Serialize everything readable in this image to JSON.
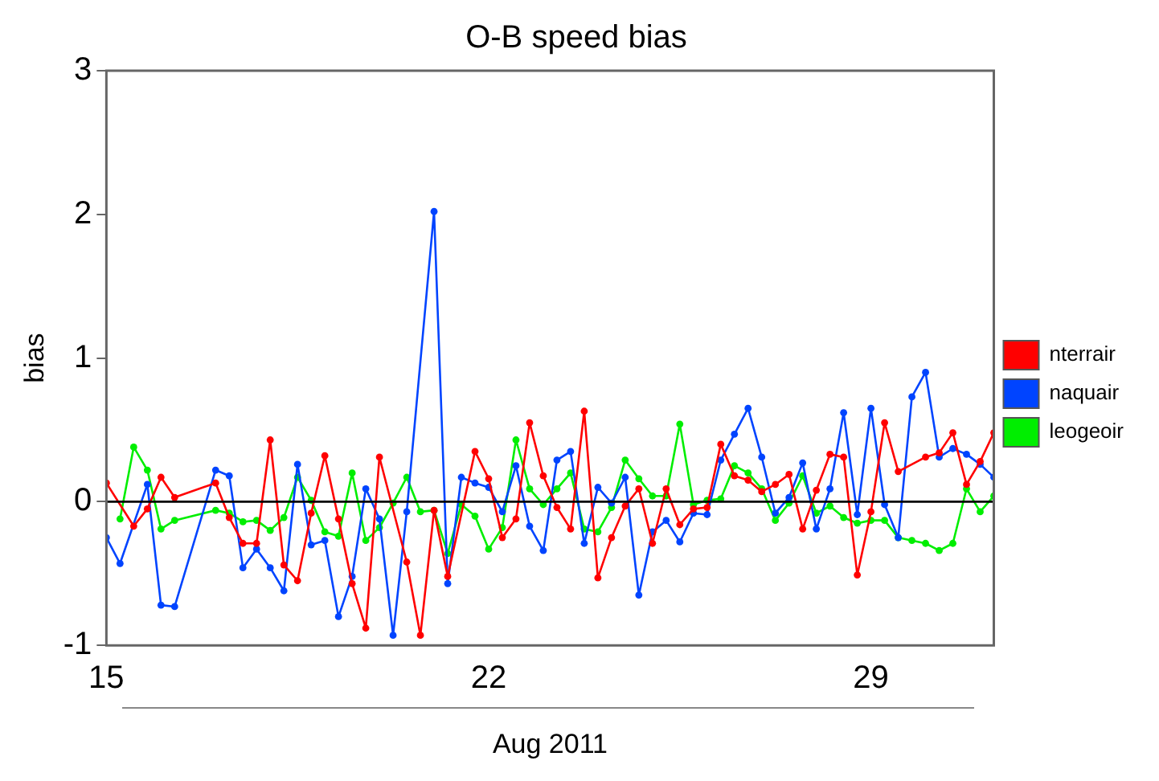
{
  "chart_data": {
    "type": "line",
    "title": "O-B speed bias",
    "xlabel": "Aug 2011",
    "ylabel": "bias",
    "xlim": [
      15,
      31.25
    ],
    "xticks": [
      15,
      22,
      29
    ],
    "ylim": [
      -1,
      3
    ],
    "yticks": [
      -1,
      0,
      1,
      2,
      3
    ],
    "grid": false,
    "legend": "right",
    "marker": "circle",
    "line_style": "solid",
    "ref_lines": [
      {
        "axis": "y",
        "value": 0,
        "color": "#000000"
      }
    ],
    "series": [
      {
        "name": "nterrair",
        "color": "#ff0000",
        "x": [
          15,
          15.5,
          15.75,
          16,
          16.25,
          17,
          17.25,
          17.5,
          17.75,
          18,
          18.25,
          18.5,
          18.75,
          19,
          19.25,
          19.5,
          19.75,
          20,
          20.5,
          20.75,
          21,
          21.25,
          21.75,
          22,
          22.25,
          22.5,
          22.75,
          23,
          23.25,
          23.5,
          23.75,
          24,
          24.25,
          24.5,
          24.75,
          25,
          25.25,
          25.5,
          25.75,
          26,
          26.25,
          26.5,
          26.75,
          27,
          27.25,
          27.5,
          27.75,
          28,
          28.25,
          28.5,
          28.75,
          29,
          29.25,
          29.5,
          30,
          30.25,
          30.5,
          30.75,
          31,
          31.25
        ],
        "values": [
          0.13,
          -0.17,
          -0.05,
          0.17,
          0.03,
          0.13,
          -0.11,
          -0.29,
          -0.29,
          0.43,
          -0.44,
          -0.55,
          -0.08,
          0.32,
          -0.12,
          -0.57,
          -0.88,
          0.31,
          -0.42,
          -0.93,
          -0.06,
          -0.52,
          0.35,
          0.16,
          -0.25,
          -0.12,
          0.55,
          0.18,
          -0.04,
          -0.19,
          0.63,
          -0.53,
          -0.25,
          -0.03,
          0.09,
          -0.29,
          0.09,
          -0.16,
          -0.05,
          -0.04,
          0.4,
          0.18,
          0.15,
          0.07,
          0.12,
          0.19,
          -0.19,
          0.08,
          0.33,
          0.31,
          -0.51,
          -0.07,
          0.55,
          0.21,
          0.31,
          0.34,
          0.48,
          0.12,
          0.28,
          0.48
        ]
      },
      {
        "name": "naquair",
        "color": "#0044ff",
        "x": [
          15,
          15.25,
          15.75,
          16,
          16.25,
          17,
          17.25,
          17.5,
          17.75,
          18,
          18.25,
          18.5,
          18.75,
          19,
          19.25,
          19.5,
          19.75,
          20,
          20.25,
          20.5,
          21,
          21.25,
          21.5,
          21.75,
          22,
          22.25,
          22.5,
          22.75,
          23,
          23.25,
          23.5,
          23.75,
          24,
          24.25,
          24.5,
          24.75,
          25,
          25.25,
          25.5,
          25.75,
          26,
          26.25,
          26.5,
          26.75,
          27,
          27.25,
          27.5,
          27.75,
          28,
          28.25,
          28.5,
          28.75,
          29,
          29.25,
          29.5,
          29.75,
          30,
          30.25,
          30.5,
          30.75,
          31,
          31.25
        ],
        "values": [
          -0.25,
          -0.43,
          0.12,
          -0.72,
          -0.73,
          0.22,
          0.18,
          -0.46,
          -0.33,
          -0.46,
          -0.62,
          0.26,
          -0.3,
          -0.27,
          -0.8,
          -0.52,
          0.09,
          -0.12,
          -0.93,
          -0.07,
          2.02,
          -0.57,
          0.17,
          0.13,
          0.1,
          -0.07,
          0.25,
          -0.17,
          -0.34,
          0.29,
          0.35,
          -0.29,
          0.1,
          -0.01,
          0.17,
          -0.65,
          -0.21,
          -0.13,
          -0.28,
          -0.08,
          -0.09,
          0.29,
          0.47,
          0.65,
          0.31,
          -0.08,
          0.03,
          0.27,
          -0.19,
          0.09,
          0.62,
          -0.09,
          0.65,
          -0.02,
          -0.25,
          0.73,
          0.9,
          0.31,
          0.37,
          0.33,
          0.26,
          0.17
        ]
      },
      {
        "name": "leogeoir",
        "color": "#00ee00",
        "x": [
          15.25,
          15.5,
          15.75,
          16,
          16.25,
          17,
          17.25,
          17.5,
          17.75,
          18,
          18.25,
          18.5,
          18.75,
          19,
          19.25,
          19.5,
          19.75,
          20,
          20.25,
          20.5,
          20.75,
          21,
          21.25,
          21.5,
          21.75,
          22,
          22.25,
          22.5,
          22.75,
          23,
          23.25,
          23.5,
          23.75,
          24,
          24.25,
          24.5,
          24.75,
          25,
          25.25,
          25.5,
          25.75,
          26,
          26.25,
          26.5,
          26.75,
          27,
          27.25,
          27.5,
          27.75,
          28,
          28.25,
          28.5,
          28.75,
          29,
          29.25,
          29.5,
          29.75,
          30,
          30.25,
          30.5,
          30.75,
          31,
          31.25
        ],
        "values": [
          -0.12,
          0.38,
          0.22,
          -0.19,
          -0.13,
          -0.06,
          -0.08,
          -0.14,
          -0.13,
          -0.2,
          -0.11,
          0.17,
          0.01,
          -0.21,
          -0.24,
          0.2,
          -0.27,
          -0.18,
          -0.01,
          0.17,
          -0.07,
          -0.06,
          -0.36,
          -0.02,
          -0.1,
          -0.33,
          -0.18,
          0.43,
          0.09,
          -0.02,
          0.09,
          0.2,
          -0.19,
          -0.21,
          -0.04,
          0.29,
          0.16,
          0.04,
          0.04,
          0.54,
          -0.02,
          0.01,
          0.02,
          0.25,
          0.2,
          0.09,
          -0.13,
          -0.01,
          0.18,
          -0.08,
          -0.03,
          -0.11,
          -0.15,
          -0.13,
          -0.13,
          -0.25,
          -0.27,
          -0.29,
          -0.34,
          -0.29,
          0.09,
          -0.07,
          0.04
        ]
      }
    ]
  }
}
